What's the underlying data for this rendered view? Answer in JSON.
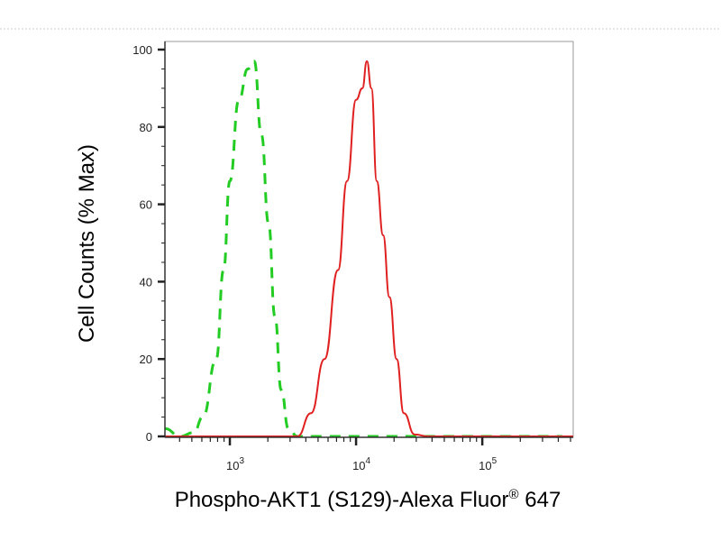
{
  "chart_data": {
    "type": "line",
    "title": "",
    "xlabel": "Phospho-AKT1 (S129)-Alexa Fluor",
    "xlabel_superscript": "®",
    "xlabel_suffix": " 647",
    "ylabel": "Cell Counts (% Max)",
    "x_scale": "log",
    "xlim": [
      306,
      525000
    ],
    "ylim": [
      0,
      100
    ],
    "x_ticks": [
      {
        "base": "10",
        "exp": "3",
        "value": 1000
      },
      {
        "base": "10",
        "exp": "4",
        "value": 10000
      },
      {
        "base": "10",
        "exp": "5",
        "value": 100000
      }
    ],
    "y_ticks": [
      "0",
      "20",
      "40",
      "60",
      "80",
      "100"
    ],
    "grid": false,
    "legend": "none",
    "series": [
      {
        "color": "#22cc22",
        "style": "dashed",
        "x": [
          306,
          404,
          518,
          611,
          781,
          891,
          1000,
          1179,
          1389,
          1560,
          1778,
          2028,
          2276,
          2554,
          2912,
          3433,
          430000
        ],
        "y": [
          2,
          0,
          1,
          5,
          20,
          43,
          66,
          87,
          95,
          97,
          78,
          55,
          31,
          12,
          2,
          0,
          0
        ]
      },
      {
        "color": "#e02020",
        "style": "solid",
        "x": [
          306,
          3433,
          4394,
          5623,
          7197,
          8483,
          10000,
          11220,
          12180,
          13220,
          14590,
          16380,
          18380,
          20950,
          23900,
          29110,
          37280,
          525000
        ],
        "y": [
          0,
          0,
          6,
          20,
          43,
          66,
          87,
          90,
          97,
          90,
          66,
          52,
          36,
          20,
          6,
          0.5,
          0,
          0
        ]
      }
    ]
  }
}
